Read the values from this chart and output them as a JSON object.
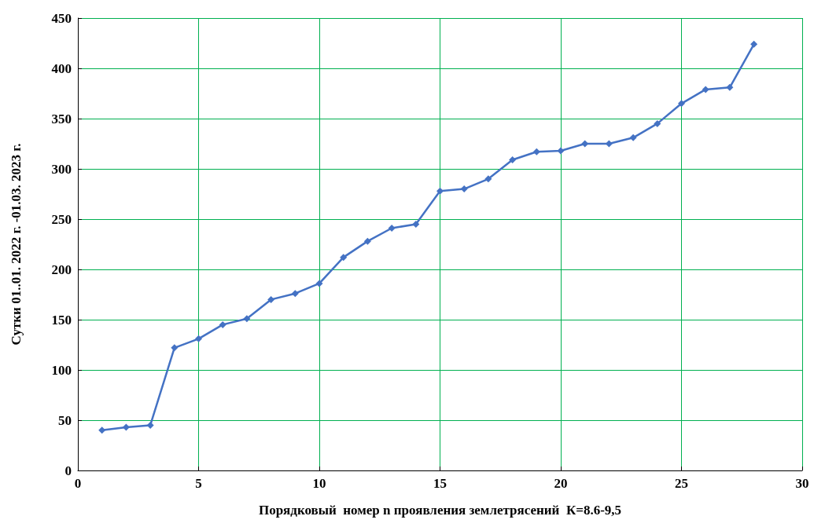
{
  "chart_data": {
    "type": "line",
    "xlabel": "Порядковый  номер n проявления землетрясений  К=8.6-9,5",
    "ylabel": "Сутки 01..01. 2022 г. -01.03. 2023 г.",
    "x": [
      1,
      2,
      3,
      4,
      5,
      6,
      7,
      8,
      9,
      10,
      11,
      12,
      13,
      14,
      15,
      16,
      17,
      18,
      19,
      20,
      21,
      22,
      23,
      24,
      25,
      26,
      27,
      28
    ],
    "series": [
      {
        "color": "#4472c4",
        "values": [
          40,
          43,
          45,
          122,
          131,
          145,
          151,
          170,
          176,
          186,
          212,
          228,
          241,
          245,
          278,
          280,
          290,
          309,
          317,
          318,
          325,
          325,
          331,
          345,
          365,
          379,
          381,
          424
        ]
      }
    ],
    "xlim": [
      0,
      30
    ],
    "xticks": [
      0,
      5,
      10,
      15,
      20,
      25,
      30
    ],
    "ylim": [
      0,
      450
    ],
    "yticks": [
      0,
      50,
      100,
      150,
      200,
      250,
      300,
      350,
      400,
      450
    ],
    "grid": true,
    "marker": "diamond",
    "line_style": "solid"
  }
}
